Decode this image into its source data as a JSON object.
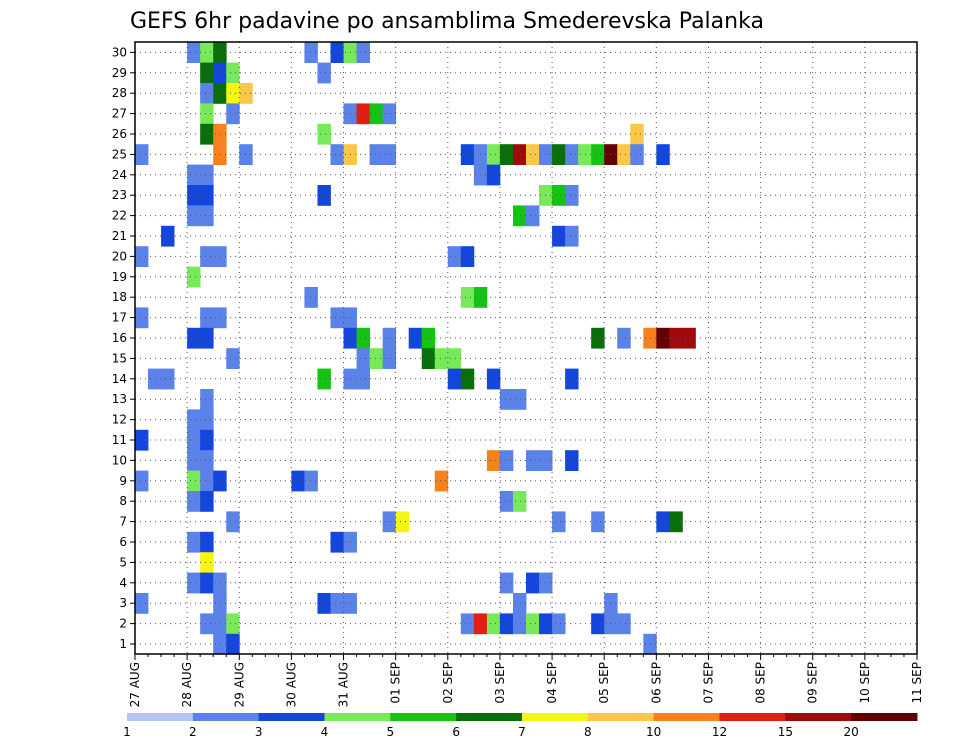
{
  "chart_data": {
    "type": "heatmap",
    "title": "GEFS 6hr padavine po ansamblima Smederevska Palanka",
    "x_tick_labels": [
      "27 AUG",
      "28 AUG",
      "29 AUG",
      "30 AUG",
      "31 AUG",
      "01 SEP",
      "02 SEP",
      "03 SEP",
      "04 SEP",
      "05 SEP",
      "06 SEP",
      "07 SEP",
      "08 SEP",
      "09 SEP",
      "10 SEP",
      "11 SEP"
    ],
    "y_range": [
      1,
      30
    ],
    "grid": true,
    "colorbar": {
      "labels": [
        "1",
        "2",
        "3",
        "4",
        "5",
        "6",
        "7",
        "8",
        "10",
        "12",
        "15",
        "20"
      ],
      "colors": [
        "#b4c6f5",
        "#5a82e8",
        "#1446dc",
        "#78ea5a",
        "#14c314",
        "#0a6e0a",
        "#f5f514",
        "#fac846",
        "#f5821e",
        "#e11e14",
        "#a00a0a",
        "#640000"
      ]
    },
    "cells": [
      [
        4,
        30,
        1
      ],
      [
        5,
        30,
        3
      ],
      [
        6,
        30,
        5
      ],
      [
        13,
        30,
        1
      ],
      [
        15,
        30,
        2
      ],
      [
        16,
        30,
        3
      ],
      [
        17,
        30,
        1
      ],
      [
        5,
        29,
        5
      ],
      [
        6,
        29,
        2
      ],
      [
        7,
        29,
        3
      ],
      [
        14,
        29,
        1
      ],
      [
        5,
        28,
        1
      ],
      [
        6,
        28,
        5
      ],
      [
        7,
        28,
        6
      ],
      [
        8,
        28,
        7
      ],
      [
        5,
        27,
        3
      ],
      [
        7,
        27,
        1
      ],
      [
        16,
        27,
        1
      ],
      [
        17,
        27,
        9
      ],
      [
        18,
        27,
        4
      ],
      [
        19,
        27,
        1
      ],
      [
        5,
        26,
        5
      ],
      [
        6,
        26,
        8
      ],
      [
        14,
        26,
        3
      ],
      [
        38,
        26,
        7
      ],
      [
        0,
        25,
        1
      ],
      [
        6,
        25,
        8
      ],
      [
        8,
        25,
        1
      ],
      [
        15,
        25,
        1
      ],
      [
        16,
        25,
        7
      ],
      [
        18,
        25,
        1
      ],
      [
        19,
        25,
        1
      ],
      [
        25,
        25,
        2
      ],
      [
        26,
        25,
        1
      ],
      [
        27,
        25,
        3
      ],
      [
        28,
        25,
        5
      ],
      [
        29,
        25,
        10
      ],
      [
        30,
        25,
        7
      ],
      [
        31,
        25,
        1
      ],
      [
        32,
        25,
        5
      ],
      [
        33,
        25,
        1
      ],
      [
        34,
        25,
        3
      ],
      [
        35,
        25,
        4
      ],
      [
        36,
        25,
        11
      ],
      [
        37,
        25,
        7
      ],
      [
        38,
        25,
        1
      ],
      [
        40,
        25,
        2
      ],
      [
        4,
        24,
        1
      ],
      [
        5,
        24,
        1
      ],
      [
        26,
        24,
        1
      ],
      [
        27,
        24,
        2
      ],
      [
        4,
        23,
        2
      ],
      [
        5,
        23,
        2
      ],
      [
        14,
        23,
        2
      ],
      [
        31,
        23,
        3
      ],
      [
        32,
        23,
        4
      ],
      [
        33,
        23,
        1
      ],
      [
        4,
        22,
        1
      ],
      [
        5,
        22,
        1
      ],
      [
        29,
        22,
        4
      ],
      [
        30,
        22,
        1
      ],
      [
        2,
        21,
        2
      ],
      [
        32,
        21,
        2
      ],
      [
        33,
        21,
        1
      ],
      [
        0,
        20,
        1
      ],
      [
        5,
        20,
        1
      ],
      [
        6,
        20,
        1
      ],
      [
        24,
        20,
        1
      ],
      [
        25,
        20,
        2
      ],
      [
        4,
        19,
        3
      ],
      [
        13,
        18,
        1
      ],
      [
        25,
        18,
        3
      ],
      [
        26,
        18,
        4
      ],
      [
        0,
        17,
        1
      ],
      [
        5,
        17,
        1
      ],
      [
        6,
        17,
        1
      ],
      [
        15,
        17,
        1
      ],
      [
        16,
        17,
        1
      ],
      [
        4,
        16,
        2
      ],
      [
        5,
        16,
        2
      ],
      [
        16,
        16,
        2
      ],
      [
        17,
        16,
        4
      ],
      [
        19,
        16,
        1
      ],
      [
        21,
        16,
        2
      ],
      [
        22,
        16,
        4
      ],
      [
        35,
        16,
        5
      ],
      [
        37,
        16,
        1
      ],
      [
        39,
        16,
        8
      ],
      [
        40,
        16,
        11
      ],
      [
        41,
        16,
        10
      ],
      [
        42,
        16,
        10
      ],
      [
        7,
        15,
        1
      ],
      [
        17,
        15,
        1
      ],
      [
        18,
        15,
        3
      ],
      [
        19,
        15,
        1
      ],
      [
        22,
        15,
        5
      ],
      [
        23,
        15,
        3
      ],
      [
        24,
        15,
        3
      ],
      [
        1,
        14,
        1
      ],
      [
        2,
        14,
        1
      ],
      [
        14,
        14,
        4
      ],
      [
        16,
        14,
        1
      ],
      [
        17,
        14,
        1
      ],
      [
        24,
        14,
        2
      ],
      [
        25,
        14,
        5
      ],
      [
        27,
        14,
        2
      ],
      [
        33,
        14,
        2
      ],
      [
        5,
        13,
        1
      ],
      [
        28,
        13,
        1
      ],
      [
        29,
        13,
        1
      ],
      [
        4,
        12,
        1
      ],
      [
        5,
        12,
        1
      ],
      [
        0,
        11,
        2
      ],
      [
        4,
        11,
        1
      ],
      [
        5,
        11,
        2
      ],
      [
        4,
        10,
        1
      ],
      [
        5,
        10,
        1
      ],
      [
        27,
        10,
        8
      ],
      [
        28,
        10,
        1
      ],
      [
        30,
        10,
        1
      ],
      [
        31,
        10,
        1
      ],
      [
        33,
        10,
        2
      ],
      [
        0,
        9,
        1
      ],
      [
        4,
        9,
        3
      ],
      [
        5,
        9,
        1
      ],
      [
        6,
        9,
        2
      ],
      [
        12,
        9,
        2
      ],
      [
        13,
        9,
        1
      ],
      [
        23,
        9,
        8
      ],
      [
        4,
        8,
        1
      ],
      [
        5,
        8,
        2
      ],
      [
        28,
        8,
        1
      ],
      [
        29,
        8,
        3
      ],
      [
        7,
        7,
        1
      ],
      [
        19,
        7,
        1
      ],
      [
        20,
        7,
        6
      ],
      [
        32,
        7,
        1
      ],
      [
        35,
        7,
        1
      ],
      [
        40,
        7,
        2
      ],
      [
        41,
        7,
        5
      ],
      [
        4,
        6,
        1
      ],
      [
        5,
        6,
        2
      ],
      [
        15,
        6,
        2
      ],
      [
        16,
        6,
        1
      ],
      [
        5,
        5,
        6
      ],
      [
        4,
        4,
        1
      ],
      [
        5,
        4,
        2
      ],
      [
        6,
        4,
        1
      ],
      [
        28,
        4,
        1
      ],
      [
        30,
        4,
        2
      ],
      [
        31,
        4,
        1
      ],
      [
        0,
        3,
        1
      ],
      [
        6,
        3,
        1
      ],
      [
        14,
        3,
        2
      ],
      [
        15,
        3,
        1
      ],
      [
        16,
        3,
        1
      ],
      [
        29,
        3,
        1
      ],
      [
        36,
        3,
        1
      ],
      [
        5,
        2,
        1
      ],
      [
        6,
        2,
        1
      ],
      [
        7,
        2,
        3
      ],
      [
        25,
        2,
        1
      ],
      [
        26,
        2,
        9
      ],
      [
        27,
        2,
        3
      ],
      [
        28,
        2,
        2
      ],
      [
        29,
        2,
        1
      ],
      [
        30,
        2,
        3
      ],
      [
        31,
        2,
        2
      ],
      [
        32,
        2,
        1
      ],
      [
        35,
        2,
        2
      ],
      [
        36,
        2,
        1
      ],
      [
        37,
        2,
        1
      ],
      [
        6,
        1,
        1
      ],
      [
        7,
        1,
        2
      ],
      [
        39,
        1,
        1
      ]
    ]
  }
}
